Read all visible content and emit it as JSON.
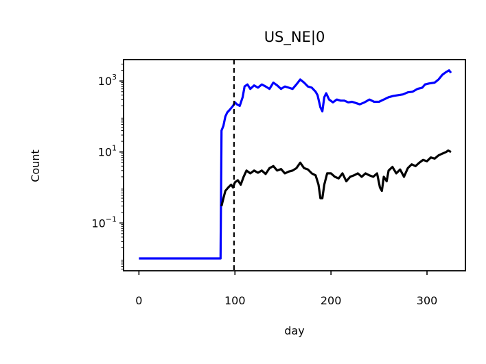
{
  "chart_data": {
    "type": "line",
    "title": "US_NE|0",
    "xlabel": "day",
    "ylabel": "Count",
    "xlim": [
      -16,
      340
    ],
    "ylim": [
      0.0045,
      4000
    ],
    "yscale": "log",
    "grid": false,
    "x_ticks": [
      {
        "value": 0,
        "label": "0"
      },
      {
        "value": 100,
        "label": "100"
      },
      {
        "value": 200,
        "label": "200"
      },
      {
        "value": 300,
        "label": "300"
      }
    ],
    "y_ticks": [
      {
        "value": 0.1,
        "base": "10",
        "exp": "−1"
      },
      {
        "value": 10,
        "base": "10",
        "exp": "1"
      },
      {
        "value": 1000,
        "base": "10",
        "exp": "3"
      }
    ],
    "vline": {
      "x": 99,
      "style": "dashed",
      "color": "#000000"
    },
    "series": [
      {
        "color": "#0000ff",
        "points": [
          [
            0,
            0.01
          ],
          [
            20,
            0.01
          ],
          [
            40,
            0.01
          ],
          [
            60,
            0.01
          ],
          [
            85,
            0.01
          ],
          [
            86,
            40
          ],
          [
            88,
            55
          ],
          [
            90,
            100
          ],
          [
            92,
            130
          ],
          [
            95,
            160
          ],
          [
            98,
            200
          ],
          [
            100,
            250
          ],
          [
            102,
            220
          ],
          [
            105,
            200
          ],
          [
            108,
            350
          ],
          [
            110,
            700
          ],
          [
            113,
            800
          ],
          [
            116,
            600
          ],
          [
            120,
            750
          ],
          [
            124,
            650
          ],
          [
            128,
            800
          ],
          [
            132,
            700
          ],
          [
            136,
            600
          ],
          [
            140,
            900
          ],
          [
            144,
            750
          ],
          [
            148,
            600
          ],
          [
            152,
            700
          ],
          [
            156,
            650
          ],
          [
            160,
            600
          ],
          [
            164,
            800
          ],
          [
            168,
            1100
          ],
          [
            172,
            900
          ],
          [
            176,
            700
          ],
          [
            180,
            650
          ],
          [
            184,
            500
          ],
          [
            186,
            400
          ],
          [
            189,
            180
          ],
          [
            191,
            140
          ],
          [
            193,
            350
          ],
          [
            195,
            450
          ],
          [
            198,
            300
          ],
          [
            202,
            250
          ],
          [
            206,
            300
          ],
          [
            210,
            280
          ],
          [
            214,
            280
          ],
          [
            218,
            250
          ],
          [
            222,
            260
          ],
          [
            226,
            240
          ],
          [
            230,
            220
          ],
          [
            235,
            250
          ],
          [
            240,
            300
          ],
          [
            245,
            260
          ],
          [
            250,
            260
          ],
          [
            255,
            300
          ],
          [
            260,
            350
          ],
          [
            265,
            380
          ],
          [
            270,
            400
          ],
          [
            275,
            420
          ],
          [
            280,
            480
          ],
          [
            285,
            500
          ],
          [
            290,
            600
          ],
          [
            295,
            650
          ],
          [
            298,
            800
          ],
          [
            302,
            850
          ],
          [
            308,
            900
          ],
          [
            312,
            1100
          ],
          [
            316,
            1500
          ],
          [
            320,
            1800
          ],
          [
            323,
            2000
          ],
          [
            325,
            1700
          ]
        ]
      },
      {
        "color": "#000000",
        "points": [
          [
            86,
            0.3
          ],
          [
            88,
            0.5
          ],
          [
            90,
            0.8
          ],
          [
            93,
            1.0
          ],
          [
            96,
            1.2
          ],
          [
            98,
            1.0
          ],
          [
            100,
            1.4
          ],
          [
            103,
            1.6
          ],
          [
            106,
            1.2
          ],
          [
            109,
            2.0
          ],
          [
            112,
            3.0
          ],
          [
            116,
            2.5
          ],
          [
            120,
            3.0
          ],
          [
            124,
            2.6
          ],
          [
            128,
            3.0
          ],
          [
            132,
            2.4
          ],
          [
            136,
            3.5
          ],
          [
            140,
            4.0
          ],
          [
            144,
            3.0
          ],
          [
            148,
            3.3
          ],
          [
            152,
            2.5
          ],
          [
            156,
            2.8
          ],
          [
            160,
            3.0
          ],
          [
            164,
            3.5
          ],
          [
            168,
            5.0
          ],
          [
            172,
            3.5
          ],
          [
            176,
            3.2
          ],
          [
            180,
            2.5
          ],
          [
            184,
            2.2
          ],
          [
            187,
            1.2
          ],
          [
            189,
            0.5
          ],
          [
            191,
            0.5
          ],
          [
            193,
            1.2
          ],
          [
            196,
            2.5
          ],
          [
            200,
            2.5
          ],
          [
            204,
            2.0
          ],
          [
            208,
            1.8
          ],
          [
            212,
            2.5
          ],
          [
            216,
            1.5
          ],
          [
            220,
            2.0
          ],
          [
            224,
            2.2
          ],
          [
            228,
            2.5
          ],
          [
            232,
            2.0
          ],
          [
            236,
            2.5
          ],
          [
            240,
            2.2
          ],
          [
            244,
            2.0
          ],
          [
            248,
            2.5
          ],
          [
            251,
            1.0
          ],
          [
            253,
            0.8
          ],
          [
            255,
            2.0
          ],
          [
            258,
            1.5
          ],
          [
            260,
            3.0
          ],
          [
            264,
            3.8
          ],
          [
            268,
            2.5
          ],
          [
            272,
            3.2
          ],
          [
            276,
            2.0
          ],
          [
            280,
            3.5
          ],
          [
            284,
            4.5
          ],
          [
            288,
            4.0
          ],
          [
            292,
            5.0
          ],
          [
            296,
            6.0
          ],
          [
            300,
            5.5
          ],
          [
            304,
            7.0
          ],
          [
            308,
            6.5
          ],
          [
            312,
            8.0
          ],
          [
            316,
            9.0
          ],
          [
            320,
            10.0
          ],
          [
            322,
            11.0
          ],
          [
            325,
            10.0
          ]
        ]
      }
    ]
  }
}
